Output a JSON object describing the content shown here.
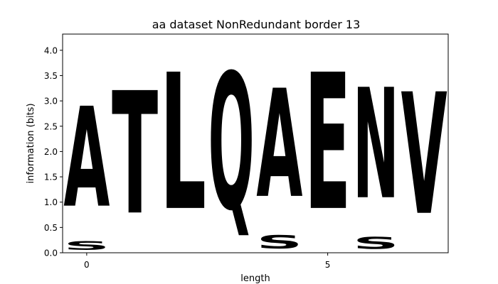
{
  "chart_data": {
    "type": "sequence-logo",
    "title": "aa dataset NonRedundant border 13",
    "xlabel": "length",
    "ylabel": "information (bits)",
    "xlim": [
      -0.5,
      7.5
    ],
    "ylim": [
      0,
      4.32
    ],
    "xticks": [
      0,
      5
    ],
    "yticks": [
      0.0,
      0.5,
      1.0,
      1.5,
      2.0,
      2.5,
      3.0,
      3.5,
      4.0
    ],
    "colors": {
      "black": "#000000",
      "green": "#22d62a",
      "magenta": "#d41ec0",
      "red": "#d40c17"
    },
    "positions": [
      {
        "x": 0,
        "letters": [
          {
            "char": "S",
            "y0": 0.0,
            "y1": 0.28,
            "color": "#22d62a"
          },
          {
            "char": "A",
            "y0": 0.28,
            "y1": 3.45,
            "color": "#000000"
          }
        ]
      },
      {
        "x": 1,
        "letters": [
          {
            "char": "T",
            "y0": 0.0,
            "y1": 3.88,
            "color": "#22d62a"
          }
        ]
      },
      {
        "x": 2,
        "letters": [
          {
            "char": "L",
            "y0": 0.0,
            "y1": 4.32,
            "color": "#000000"
          }
        ]
      },
      {
        "x": 3,
        "letters": [
          {
            "char": "Q",
            "y0": 0.0,
            "y1": 4.32,
            "color": "#d41ec0"
          }
        ]
      },
      {
        "x": 4,
        "letters": [
          {
            "char": "S",
            "y0": 0.0,
            "y1": 0.42,
            "color": "#22d62a"
          },
          {
            "char": "A",
            "y0": 0.42,
            "y1": 3.85,
            "color": "#000000"
          }
        ]
      },
      {
        "x": 5,
        "letters": [
          {
            "char": "E",
            "y0": 0.0,
            "y1": 4.32,
            "color": "#d40c17"
          }
        ]
      },
      {
        "x": 6,
        "letters": [
          {
            "char": "S",
            "y0": 0.0,
            "y1": 0.38,
            "color": "#22d62a"
          },
          {
            "char": "N",
            "y0": 0.38,
            "y1": 3.88,
            "color": "#d41ec0"
          }
        ]
      },
      {
        "x": 7,
        "letters": [
          {
            "char": "V",
            "y0": 0.0,
            "y1": 3.85,
            "color": "#000000"
          }
        ]
      }
    ]
  }
}
